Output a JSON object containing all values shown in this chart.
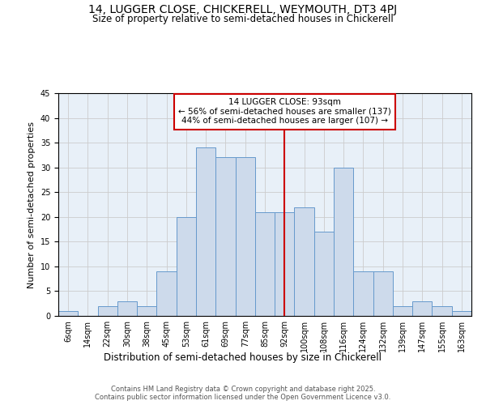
{
  "title": "14, LUGGER CLOSE, CHICKERELL, WEYMOUTH, DT3 4PJ",
  "subtitle": "Size of property relative to semi-detached houses in Chickerell",
  "xlabel": "Distribution of semi-detached houses by size in Chickerell",
  "ylabel": "Number of semi-detached properties",
  "bar_labels": [
    "6sqm",
    "14sqm",
    "22sqm",
    "30sqm",
    "38sqm",
    "45sqm",
    "53sqm",
    "61sqm",
    "69sqm",
    "77sqm",
    "85sqm",
    "92sqm",
    "100sqm",
    "108sqm",
    "116sqm",
    "124sqm",
    "132sqm",
    "139sqm",
    "147sqm",
    "155sqm",
    "163sqm"
  ],
  "bar_values": [
    1,
    0,
    2,
    3,
    2,
    9,
    20,
    34,
    32,
    32,
    21,
    21,
    22,
    17,
    30,
    9,
    9,
    2,
    3,
    2,
    1
  ],
  "bar_color": "#cddaeb",
  "bar_edge_color": "#6699cc",
  "vline_x_index": 11,
  "vline_color": "#cc0000",
  "annotation_text": "14 LUGGER CLOSE: 93sqm\n← 56% of semi-detached houses are smaller (137)\n44% of semi-detached houses are larger (107) →",
  "annotation_box_color": "#cc0000",
  "ylim": [
    0,
    45
  ],
  "yticks": [
    0,
    5,
    10,
    15,
    20,
    25,
    30,
    35,
    40,
    45
  ],
  "grid_color": "#cccccc",
  "background_color": "#e8f0f8",
  "footer_text": "Contains HM Land Registry data © Crown copyright and database right 2025.\nContains public sector information licensed under the Open Government Licence v3.0.",
  "title_fontsize": 10,
  "subtitle_fontsize": 8.5,
  "xlabel_fontsize": 8.5,
  "ylabel_fontsize": 8,
  "tick_fontsize": 7,
  "annotation_fontsize": 7.5,
  "footer_fontsize": 6
}
